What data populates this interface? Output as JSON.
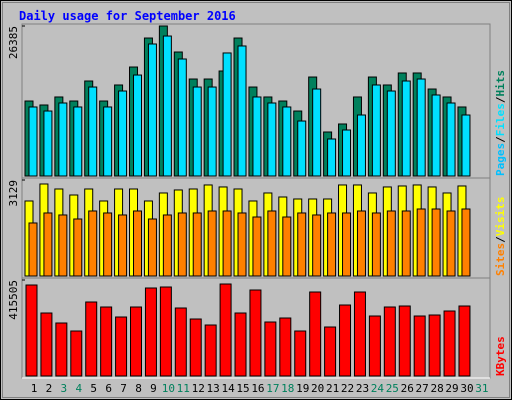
{
  "title": "Daily usage for September 2016",
  "chart_data": [
    {
      "type": "bar",
      "ylim": [
        0,
        26385
      ],
      "yticks": [
        26385
      ],
      "pages_label": {
        "text": "Pages",
        "color": "#00c0ff"
      },
      "separator": "/",
      "series": [
        {
          "name": "Hits",
          "color": "#00805c",
          "values": [
            13190,
            12490,
            13900,
            13190,
            16710,
            13190,
            16010,
            19170,
            24270,
            26385,
            21810,
            17060,
            17060,
            18470,
            24270,
            15650,
            13900,
            13190,
            11430,
            17410,
            7740,
            9150,
            13900,
            17410,
            16010,
            18120,
            18120,
            15300,
            13900,
            12140,
            null
          ]
        },
        {
          "name": "Files",
          "color": "#00e0ff",
          "values": [
            12140,
            11430,
            12840,
            12140,
            15650,
            12140,
            14950,
            17760,
            23220,
            24620,
            20580,
            15650,
            15650,
            21640,
            22870,
            13900,
            12840,
            12140,
            9670,
            15300,
            6510,
            8090,
            10730,
            16010,
            14950,
            16710,
            17060,
            14250,
            12840,
            10730,
            null
          ]
        }
      ]
    },
    {
      "type": "bar",
      "ylim": [
        0,
        3129
      ],
      "yticks": [
        3129
      ],
      "separator": "/",
      "series": [
        {
          "name": "Visits",
          "color": "#ffff00",
          "values": [
            2445,
            2999,
            2836,
            2640,
            2836,
            2445,
            2836,
            2836,
            2445,
            2706,
            2804,
            2836,
            2967,
            2902,
            2836,
            2445,
            2706,
            2575,
            2510,
            2510,
            2510,
            2967,
            2967,
            2706,
            2902,
            2934,
            2967,
            2902,
            2706,
            2934,
            null
          ]
        },
        {
          "name": "Sites",
          "color": "#ff8000",
          "values": [
            1728,
            2054,
            1989,
            1858,
            2119,
            2054,
            1989,
            2119,
            1858,
            1989,
            2054,
            2054,
            2119,
            2119,
            2054,
            1923,
            2119,
            1923,
            2054,
            1989,
            2054,
            2054,
            2119,
            2054,
            2119,
            2119,
            2184,
            2184,
            2119,
            2184,
            null
          ]
        }
      ]
    },
    {
      "type": "bar",
      "ylim": [
        0,
        415505
      ],
      "yticks": [
        415505
      ],
      "categories": [
        "1",
        "2",
        "3",
        "4",
        "5",
        "6",
        "7",
        "8",
        "9",
        "10",
        "11",
        "12",
        "13",
        "14",
        "15",
        "16",
        "17",
        "18",
        "19",
        "20",
        "21",
        "22",
        "23",
        "24",
        "25",
        "26",
        "27",
        "28",
        "29",
        "30",
        "31"
      ],
      "weekend": {
        "color": "#00805c",
        "categories": [
          "3",
          "4",
          "10",
          "11",
          "17",
          "18",
          "24",
          "25",
          "31"
        ]
      },
      "series": [
        {
          "name": "KBytes",
          "color": "#ff0000",
          "values": [
            393850,
            272660,
            229380,
            194760,
            320270,
            298630,
            255350,
            298630,
            380860,
            385190,
            294300,
            246700,
            220730,
            398180,
            272660,
            372210,
            233710,
            251020,
            194760,
            363550,
            212070,
            307290,
            363550,
            259680,
            298630,
            302960,
            259680,
            264010,
            281320,
            302960,
            null
          ]
        }
      ]
    }
  ]
}
